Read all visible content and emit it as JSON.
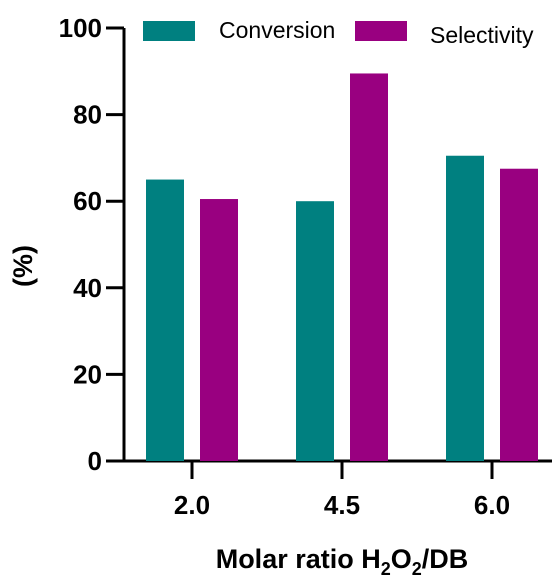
{
  "chart_data": {
    "type": "bar",
    "categories": [
      "2.0",
      "4.5",
      "6.0"
    ],
    "series": [
      {
        "name": "Conversion",
        "values": [
          65,
          60,
          70.5
        ],
        "color": "#008080"
      },
      {
        "name": "Selectivity",
        "values": [
          60.5,
          89.5,
          67.5
        ],
        "color": "#990080"
      }
    ],
    "ylabel": "(%)",
    "xlabel": {
      "prefix": "Molar ratio H",
      "sub1": "2",
      "mid": "O",
      "sub2": "2",
      "suffix": "/DB"
    },
    "ylim": [
      0,
      100
    ],
    "yticks": [
      "0",
      "20",
      "40",
      "60",
      "80",
      "100"
    ],
    "legend_position": "top",
    "grid": false
  }
}
